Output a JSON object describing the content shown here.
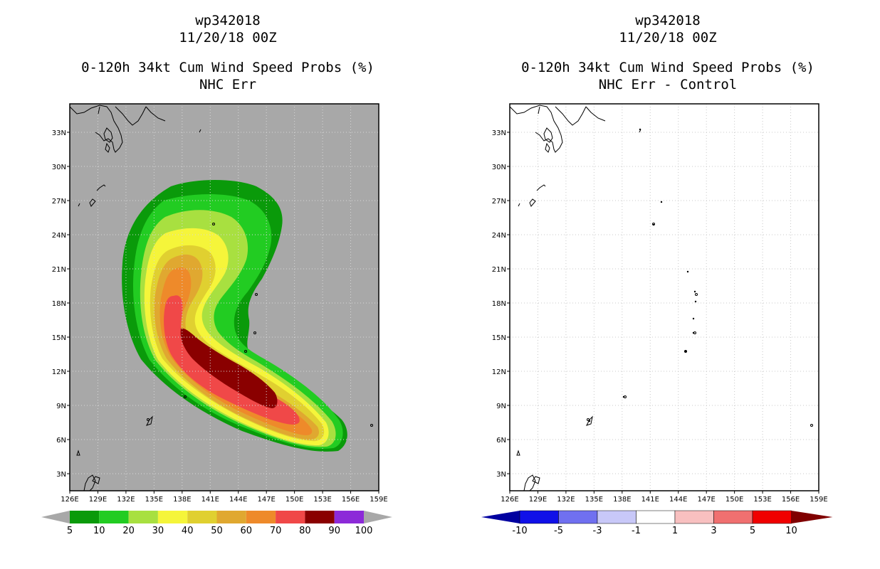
{
  "left_panel": {
    "title_line1": "wp342018",
    "title_line2": "11/20/18 00Z",
    "title_line3": "0-120h 34kt Cum Wind Speed Probs (%)",
    "title_line4": "NHC Err"
  },
  "right_panel": {
    "title_line1": "wp342018",
    "title_line2": "11/20/18 00Z",
    "title_line3": "0-120h 34kt Cum Wind Speed Probs (%)",
    "title_line4": "NHC Err - Control"
  },
  "chart_data": [
    {
      "type": "heatmap",
      "title": "0-120h 34kt Cum Wind Speed Probs (%) NHC Err",
      "storm": "wp342018",
      "datetime": "11/20/18 00Z",
      "x_ticks": [
        "126E",
        "129E",
        "132E",
        "135E",
        "138E",
        "141E",
        "144E",
        "147E",
        "150E",
        "153E",
        "156E",
        "159E"
      ],
      "y_ticks": [
        "3N",
        "6N",
        "9N",
        "12N",
        "15N",
        "18N",
        "21N",
        "24N",
        "27N",
        "30N",
        "33N"
      ],
      "xlim": [
        126,
        159
      ],
      "ylim": [
        1.5,
        35.5
      ],
      "legend_labels": [
        "5",
        "10",
        "20",
        "30",
        "40",
        "50",
        "60",
        "70",
        "80",
        "90",
        "100"
      ],
      "legend_colors": [
        "#0a9a0a",
        "#22cc22",
        "#a8e040",
        "#f5f53a",
        "#e0d030",
        "#e0a830",
        "#ee8a2a",
        "#f04848",
        "#8a0000",
        "#8c2ad8"
      ],
      "background_color": "#a8a8a8"
    },
    {
      "type": "heatmap",
      "title": "0-120h 34kt Cum Wind Speed Probs (%) NHC Err - Control",
      "storm": "wp342018",
      "datetime": "11/20/18 00Z",
      "x_ticks": [
        "126E",
        "129E",
        "132E",
        "135E",
        "138E",
        "141E",
        "144E",
        "147E",
        "150E",
        "153E",
        "156E",
        "159E"
      ],
      "y_ticks": [
        "3N",
        "6N",
        "9N",
        "12N",
        "15N",
        "18N",
        "21N",
        "24N",
        "27N",
        "30N",
        "33N"
      ],
      "xlim": [
        126,
        159
      ],
      "ylim": [
        1.5,
        35.5
      ],
      "legend_labels": [
        "-10",
        "-5",
        "-3",
        "-1",
        "1",
        "3",
        "5",
        "10"
      ],
      "legend_colors": [
        "#0000a0",
        "#1010e8",
        "#7070f0",
        "#c8c8f8",
        "#ffffff",
        "#f8c0c0",
        "#f07070",
        "#f00000",
        "#800000"
      ],
      "background_color": "#ffffff"
    }
  ]
}
